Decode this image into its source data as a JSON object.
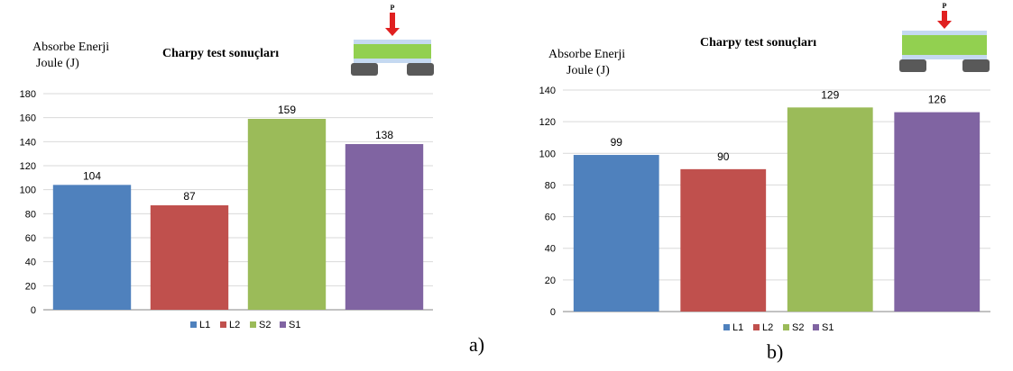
{
  "chart_data": [
    {
      "type": "bar",
      "title": "Charpy  test sonuçları",
      "ylabel_line1": "Absorbe Enerji",
      "ylabel_line2": "Joule  (J)",
      "panel_label": "a)",
      "categories": [
        "L1",
        "L2",
        "S2",
        "S1"
      ],
      "values": [
        104,
        87,
        159,
        138
      ],
      "colors": [
        "#4F81BD",
        "#C0504D",
        "#9BBB59",
        "#8064A2"
      ],
      "ylim": [
        0,
        180
      ],
      "yticks": [
        0,
        20,
        40,
        60,
        80,
        100,
        120,
        140,
        160,
        180
      ],
      "grid": true,
      "legend_placement": "bottom"
    },
    {
      "type": "bar",
      "title": "Charpy   test sonuçları",
      "ylabel_line1": "Absorbe Enerji",
      "ylabel_line2": "Joule  (J)",
      "panel_label": "b)",
      "categories": [
        "L1",
        "L2",
        "S2",
        "S1"
      ],
      "values": [
        99,
        90,
        129,
        126
      ],
      "colors": [
        "#4F81BD",
        "#C0504D",
        "#9BBB59",
        "#8064A2"
      ],
      "ylim": [
        0,
        140
      ],
      "yticks": [
        0,
        20,
        40,
        60,
        80,
        100,
        120,
        140
      ],
      "grid": true,
      "legend_placement": "bottom"
    }
  ],
  "diagram": {
    "load_label": "P",
    "arrow_color": "#E02020",
    "beam_color": "#92D050",
    "layer_color": "#C5D9F1",
    "support_color": "#595959"
  }
}
